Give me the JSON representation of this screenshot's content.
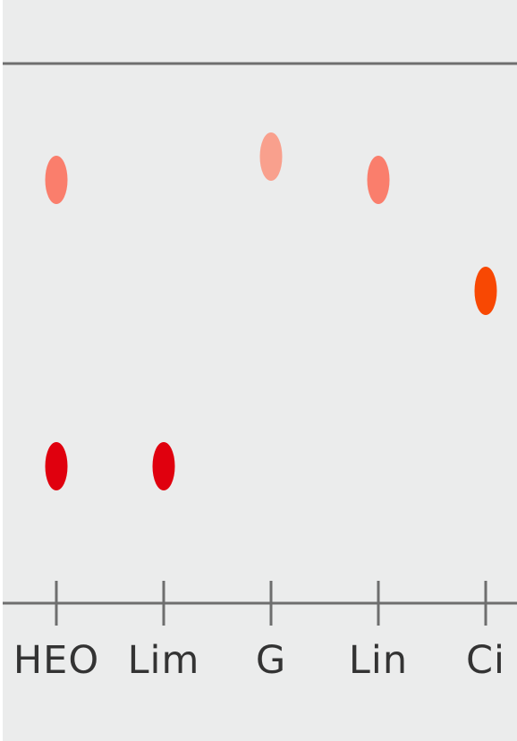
{
  "tlc_plate": {
    "lanes": [
      {
        "id": "heo",
        "label": "HEO"
      },
      {
        "id": "lim",
        "label": "Lim"
      },
      {
        "id": "g",
        "label": "G"
      },
      {
        "id": "lin",
        "label": "Lin"
      },
      {
        "id": "ci",
        "label": "Ci"
      }
    ],
    "spots": [
      {
        "lane": "heo",
        "color": "#fa7e6c"
      },
      {
        "lane": "heo",
        "color": "#e0000e"
      },
      {
        "lane": "lim",
        "color": "#e0000e"
      },
      {
        "lane": "g",
        "color": "#f9a08d"
      },
      {
        "lane": "lin",
        "color": "#fa7e6c"
      },
      {
        "lane": "ci",
        "color": "#f84803"
      }
    ],
    "line_color": "#6e6e6e"
  }
}
